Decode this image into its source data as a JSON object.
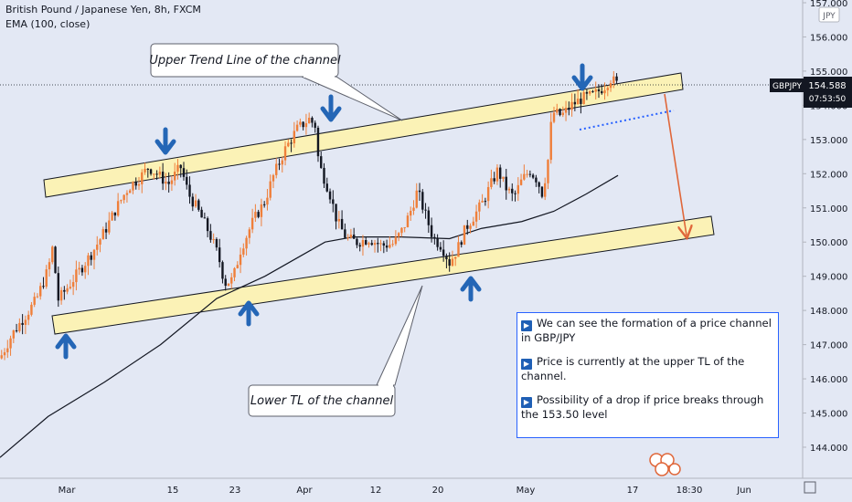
{
  "header": {
    "symbol_line": "British Pound / Japanese Yen, 8h, FXCM",
    "indicator_line": "EMA (100, close)"
  },
  "annotations": {
    "upper_callout": "Upper Trend Line of the channel",
    "lower_callout": "Lower TL of the channel"
  },
  "note_box": {
    "items": [
      "We can see the formation of a price channel in GBP/JPY",
      "Price is currently at the upper TL of the channel.",
      "Possibility of a drop if price breaks through the 153.50 level"
    ]
  },
  "price_axis": {
    "currency_label": "JPY",
    "ticks": [
      "157.000",
      "156.000",
      "155.000",
      "154.000",
      "153.000",
      "152.000",
      "151.000",
      "150.000",
      "149.000",
      "148.000",
      "147.000",
      "146.000",
      "145.000",
      "144.000"
    ],
    "tick_values": [
      157,
      156,
      155,
      154,
      153,
      152,
      151,
      150,
      149,
      148,
      147,
      146,
      145,
      144
    ],
    "symbol_tag": "GBPJPY",
    "last_price": "154.588",
    "countdown": "07:53:50"
  },
  "time_axis": {
    "ticks": [
      "Mar",
      "15",
      "23",
      "Apr",
      "12",
      "20",
      "May",
      "17",
      "18:30",
      "Jun"
    ]
  },
  "colors": {
    "background": "#e3e8f4",
    "bull": "#ef7f3a",
    "bear": "#131722",
    "channel_fill": "#fbf2b6",
    "arrow": "#2466b6",
    "projection": "#e0673a",
    "ema": "#131722",
    "support_dots": "#2962ff"
  },
  "chart_data": {
    "type": "candlestick",
    "title": "British Pound / Japanese Yen, 8h, FXCM",
    "indicator": "EMA (100, close)",
    "ylim": [
      143.4,
      157.5
    ],
    "grid": false,
    "channel": {
      "upper_band": [
        [
          "Feb 26",
          151.6
        ],
        [
          "May 22",
          154.95
        ]
      ],
      "lower_band": [
        [
          "Feb 26",
          147.7
        ],
        [
          "May 30",
          150.35
        ]
      ]
    },
    "support_level": 153.5,
    "last_price": 154.588,
    "price_path": [
      [
        0,
        146.6
      ],
      [
        0.015,
        147.3
      ],
      [
        0.03,
        147.8
      ],
      [
        0.045,
        148.3
      ],
      [
        0.06,
        149.2
      ],
      [
        0.066,
        149.9
      ],
      [
        0.072,
        148.3
      ],
      [
        0.085,
        148.7
      ],
      [
        0.1,
        149.2
      ],
      [
        0.115,
        149.7
      ],
      [
        0.13,
        150.3
      ],
      [
        0.145,
        151.0
      ],
      [
        0.16,
        151.6
      ],
      [
        0.175,
        151.9
      ],
      [
        0.185,
        152.2
      ],
      [
        0.2,
        151.9
      ],
      [
        0.21,
        151.7
      ],
      [
        0.225,
        152.2
      ],
      [
        0.235,
        151.4
      ],
      [
        0.245,
        151.0
      ],
      [
        0.26,
        150.3
      ],
      [
        0.272,
        149.6
      ],
      [
        0.28,
        148.8
      ],
      [
        0.29,
        148.9
      ],
      [
        0.3,
        149.8
      ],
      [
        0.315,
        150.6
      ],
      [
        0.33,
        151.2
      ],
      [
        0.34,
        151.9
      ],
      [
        0.355,
        152.7
      ],
      [
        0.37,
        153.3
      ],
      [
        0.385,
        153.6
      ],
      [
        0.393,
        153.4
      ],
      [
        0.397,
        152.3
      ],
      [
        0.41,
        151.5
      ],
      [
        0.42,
        150.6
      ],
      [
        0.432,
        150.1
      ],
      [
        0.445,
        150.0
      ],
      [
        0.46,
        150.1
      ],
      [
        0.475,
        149.9
      ],
      [
        0.49,
        149.95
      ],
      [
        0.5,
        150.3
      ],
      [
        0.51,
        150.8
      ],
      [
        0.52,
        151.5
      ],
      [
        0.53,
        150.8
      ],
      [
        0.54,
        150.1
      ],
      [
        0.55,
        149.9
      ],
      [
        0.56,
        149.4
      ],
      [
        0.57,
        149.8
      ],
      [
        0.58,
        150.4
      ],
      [
        0.6,
        151.1
      ],
      [
        0.61,
        151.6
      ],
      [
        0.62,
        152.1
      ],
      [
        0.63,
        151.6
      ],
      [
        0.64,
        151.3
      ],
      [
        0.65,
        151.8
      ],
      [
        0.66,
        152.1
      ],
      [
        0.67,
        151.8
      ],
      [
        0.675,
        151.4
      ],
      [
        0.682,
        152.2
      ],
      [
        0.688,
        153.8
      ],
      [
        0.7,
        153.7
      ],
      [
        0.712,
        154.0
      ],
      [
        0.725,
        154.2
      ],
      [
        0.74,
        154.3
      ],
      [
        0.755,
        154.6
      ],
      [
        0.76,
        154.8
      ],
      [
        0.77,
        154.59
      ]
    ],
    "ema_path": [
      [
        0,
        143.7
      ],
      [
        0.06,
        144.9
      ],
      [
        0.13,
        145.9
      ],
      [
        0.2,
        147.0
      ],
      [
        0.27,
        148.35
      ],
      [
        0.33,
        149.0
      ],
      [
        0.375,
        149.6
      ],
      [
        0.405,
        150.0
      ],
      [
        0.44,
        150.15
      ],
      [
        0.5,
        150.15
      ],
      [
        0.56,
        150.1
      ],
      [
        0.6,
        150.4
      ],
      [
        0.65,
        150.6
      ],
      [
        0.69,
        150.9
      ],
      [
        0.73,
        151.4
      ],
      [
        0.77,
        151.95
      ]
    ],
    "projection": [
      [
        0.764,
        154.6
      ],
      [
        0.805,
        149.95
      ]
    ]
  }
}
